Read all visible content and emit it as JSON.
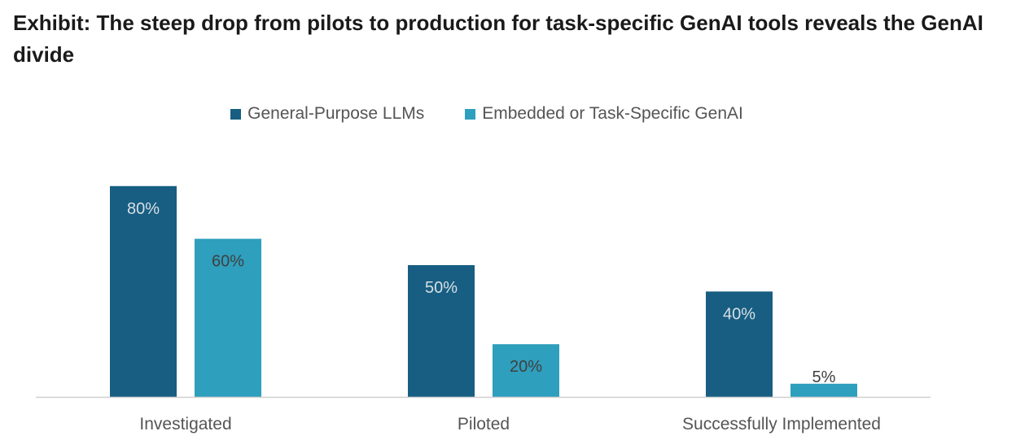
{
  "chart_data": {
    "type": "bar",
    "title": "Exhibit: The steep drop from pilots to production for task-specific GenAI tools reveals the GenAI divide",
    "categories": [
      "Investigated",
      "Piloted",
      "Successfully Implemented"
    ],
    "series": [
      {
        "name": "General-Purpose LLMs",
        "color": "#175e82",
        "values": [
          80,
          50,
          40
        ],
        "labels": [
          "80%",
          "50%",
          "40%"
        ],
        "label_color": "#d9dfe4"
      },
      {
        "name": "Embedded or Task-Specific GenAI",
        "color": "#2e9fbd",
        "values": [
          60,
          20,
          5
        ],
        "labels": [
          "60%",
          "20%",
          "5%"
        ],
        "label_color": "#404040"
      }
    ],
    "ylim": [
      0,
      100
    ],
    "xlabel": "",
    "ylabel": "",
    "grid": false,
    "legend_position": "top-center",
    "axis_color": "#d0d0d0"
  }
}
